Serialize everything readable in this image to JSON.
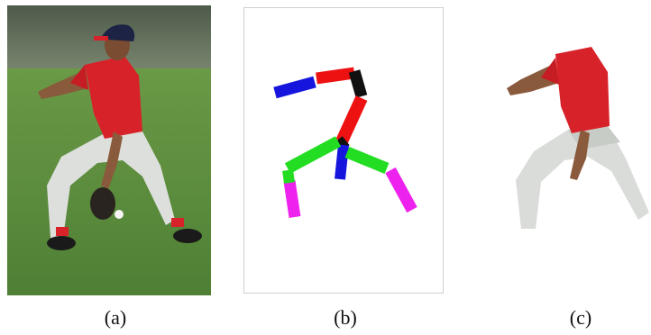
{
  "figure": {
    "captions": {
      "a": "(a)",
      "b": "(b)",
      "c": "(c)"
    },
    "colors": {
      "grass": "#5f8f3e",
      "jersey": "#d8222a",
      "pants": "#d9dcd8",
      "skin": "#8a5a3c",
      "cap": "#1c2345",
      "limb_red": "#ee1111",
      "limb_black": "#111111",
      "limb_blue": "#1515dd",
      "limb_green": "#22dd22",
      "limb_magenta": "#ee22ee"
    }
  }
}
